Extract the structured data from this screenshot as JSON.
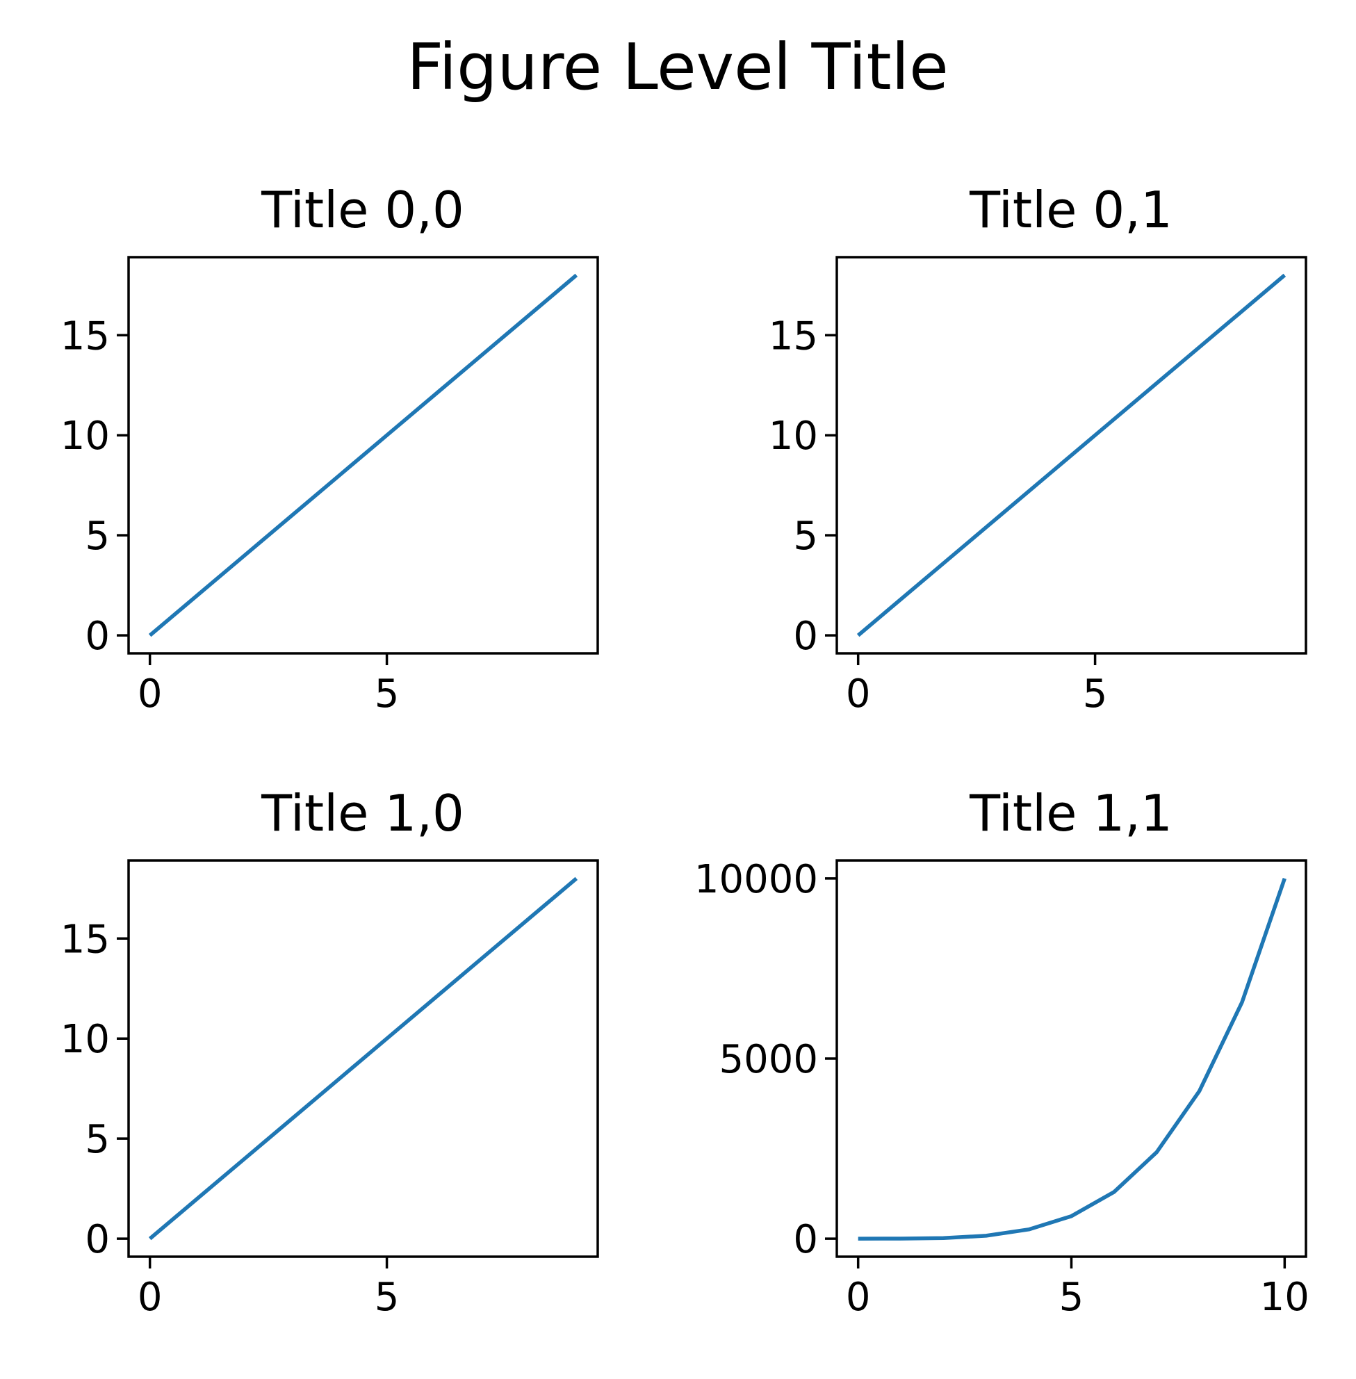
{
  "figure": {
    "title": "Figure Level Title"
  },
  "colors": {
    "line": "#1f77b4",
    "axes": "#000000",
    "background": "#ffffff"
  },
  "chart_data": [
    {
      "type": "line",
      "title": "Title 0,0",
      "xlabel": "",
      "ylabel": "",
      "x": [
        0,
        1,
        2,
        3,
        4,
        5,
        6,
        7,
        8,
        9
      ],
      "series": [
        {
          "values": [
            0,
            2,
            4,
            6,
            8,
            10,
            12,
            14,
            16,
            18
          ]
        }
      ],
      "xlim": [
        -0.45,
        9.45
      ],
      "ylim": [
        -0.9,
        18.9
      ],
      "xticks": [
        0,
        5
      ],
      "yticks": [
        0,
        5,
        10,
        15
      ],
      "grid": false
    },
    {
      "type": "line",
      "title": "Title 0,1",
      "xlabel": "",
      "ylabel": "",
      "x": [
        0,
        1,
        2,
        3,
        4,
        5,
        6,
        7,
        8,
        9
      ],
      "series": [
        {
          "values": [
            0,
            2,
            4,
            6,
            8,
            10,
            12,
            14,
            16,
            18
          ]
        }
      ],
      "xlim": [
        -0.45,
        9.45
      ],
      "ylim": [
        -0.9,
        18.9
      ],
      "xticks": [
        0,
        5
      ],
      "yticks": [
        0,
        5,
        10,
        15
      ],
      "grid": false
    },
    {
      "type": "line",
      "title": "Title 1,0",
      "xlabel": "",
      "ylabel": "",
      "x": [
        0,
        1,
        2,
        3,
        4,
        5,
        6,
        7,
        8,
        9
      ],
      "series": [
        {
          "values": [
            0,
            2,
            4,
            6,
            8,
            10,
            12,
            14,
            16,
            18
          ]
        }
      ],
      "xlim": [
        -0.45,
        9.45
      ],
      "ylim": [
        -0.9,
        18.9
      ],
      "xticks": [
        0,
        5
      ],
      "yticks": [
        0,
        5,
        10,
        15
      ],
      "grid": false
    },
    {
      "type": "line",
      "title": "Title 1,1",
      "xlabel": "",
      "ylabel": "",
      "x": [
        0,
        1,
        2,
        3,
        4,
        5,
        6,
        7,
        8,
        9,
        10
      ],
      "series": [
        {
          "values": [
            0,
            1,
            16,
            81,
            256,
            625,
            1296,
            2401,
            4096,
            6561,
            10000
          ]
        }
      ],
      "xlim": [
        -0.5,
        10.5
      ],
      "ylim": [
        -500,
        10500
      ],
      "xticks": [
        0,
        5,
        10
      ],
      "yticks": [
        0,
        5000,
        10000
      ],
      "grid": false
    }
  ]
}
